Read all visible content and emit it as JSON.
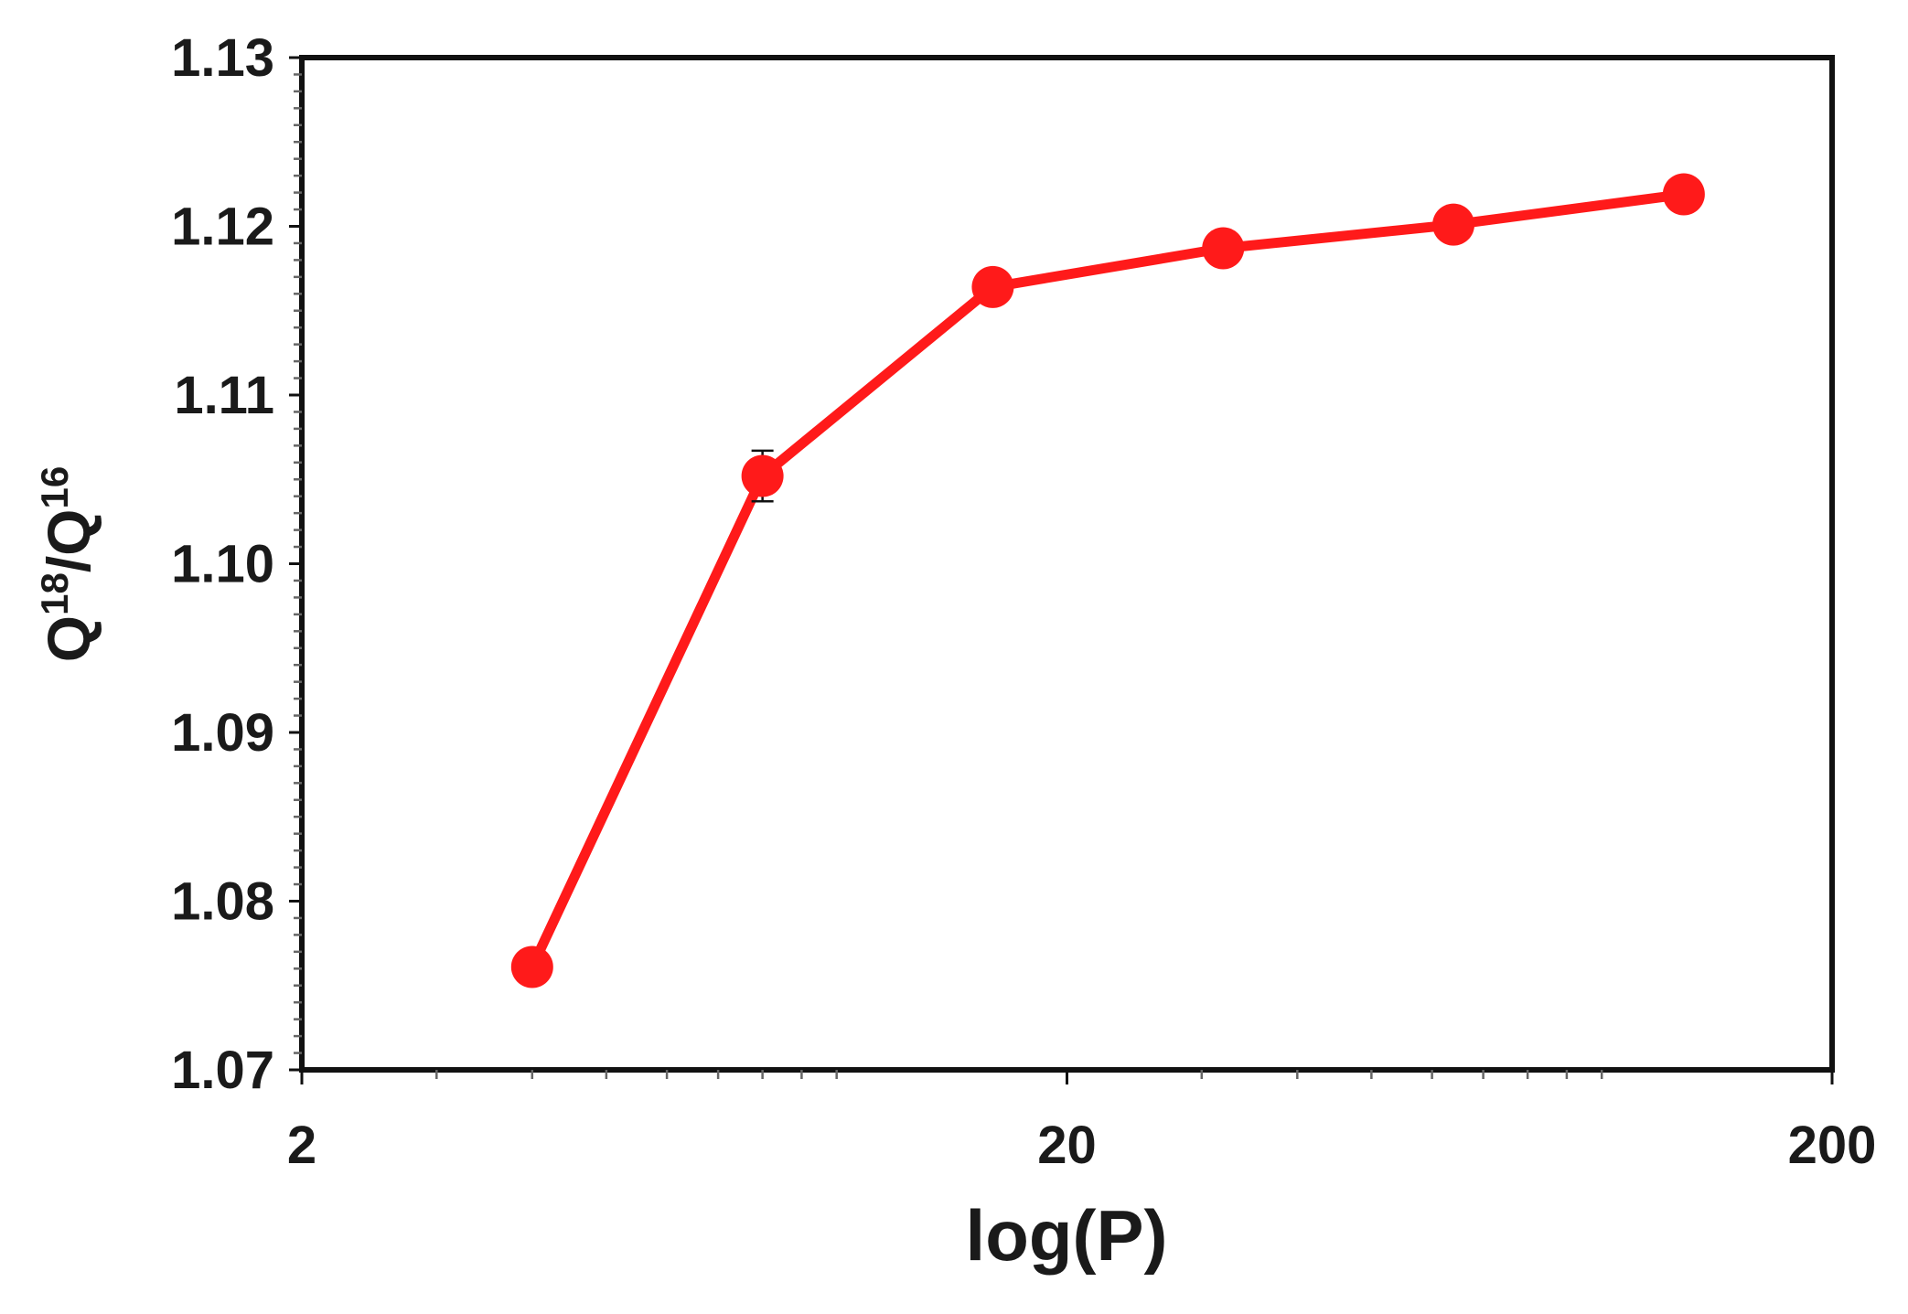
{
  "chart_data": {
    "type": "line",
    "title": "",
    "xlabel": "log(P)",
    "ylabel": {
      "base": "Q",
      "num_sup": "18",
      "sep": "/Q",
      "den_sup": "16"
    },
    "xscale": "log",
    "xlim": [
      2,
      200
    ],
    "ylim": [
      1.07,
      1.13
    ],
    "xticks": [
      "2",
      "20",
      "200"
    ],
    "yticks": [
      "1.07",
      "1.08",
      "1.09",
      "1.10",
      "1.11",
      "1.12",
      "1.13"
    ],
    "legend": "none",
    "grid": false,
    "series": [
      {
        "color": "#ff1a1a",
        "x": [
          4,
          8,
          16,
          32,
          64,
          128
        ],
        "y": [
          1.0761,
          1.1052,
          1.1164,
          1.1187,
          1.1201,
          1.1219
        ],
        "error": [
          0,
          0.0015,
          0,
          0,
          0,
          0
        ]
      }
    ]
  }
}
